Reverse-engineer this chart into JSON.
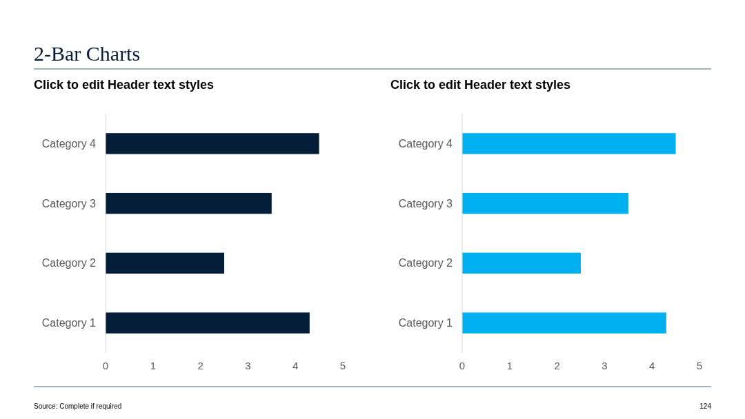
{
  "chart_data": [
    {
      "type": "bar",
      "orientation": "horizontal",
      "title": "Click to edit Header text styles",
      "categories": [
        "Category 4",
        "Category 3",
        "Category 2",
        "Category 1"
      ],
      "values": [
        4.5,
        3.5,
        2.5,
        4.3
      ],
      "color": "#041e3a",
      "xlim": [
        0,
        5
      ],
      "xticks": [
        0,
        1,
        2,
        3,
        4,
        5
      ],
      "annotations": [
        "2-Bar Charts"
      ]
    },
    {
      "type": "bar",
      "orientation": "horizontal",
      "title": "Click to edit Header text styles",
      "categories": [
        "Category 4",
        "Category 3",
        "Category 2",
        "Category 1"
      ],
      "values": [
        4.5,
        3.5,
        2.5,
        4.3
      ],
      "color": "#00b0f0",
      "xlim": [
        0,
        5
      ],
      "xticks": [
        0,
        1,
        2,
        3,
        4,
        5
      ],
      "annotations": [
        "Source: Complete if required",
        "124"
      ]
    }
  ]
}
